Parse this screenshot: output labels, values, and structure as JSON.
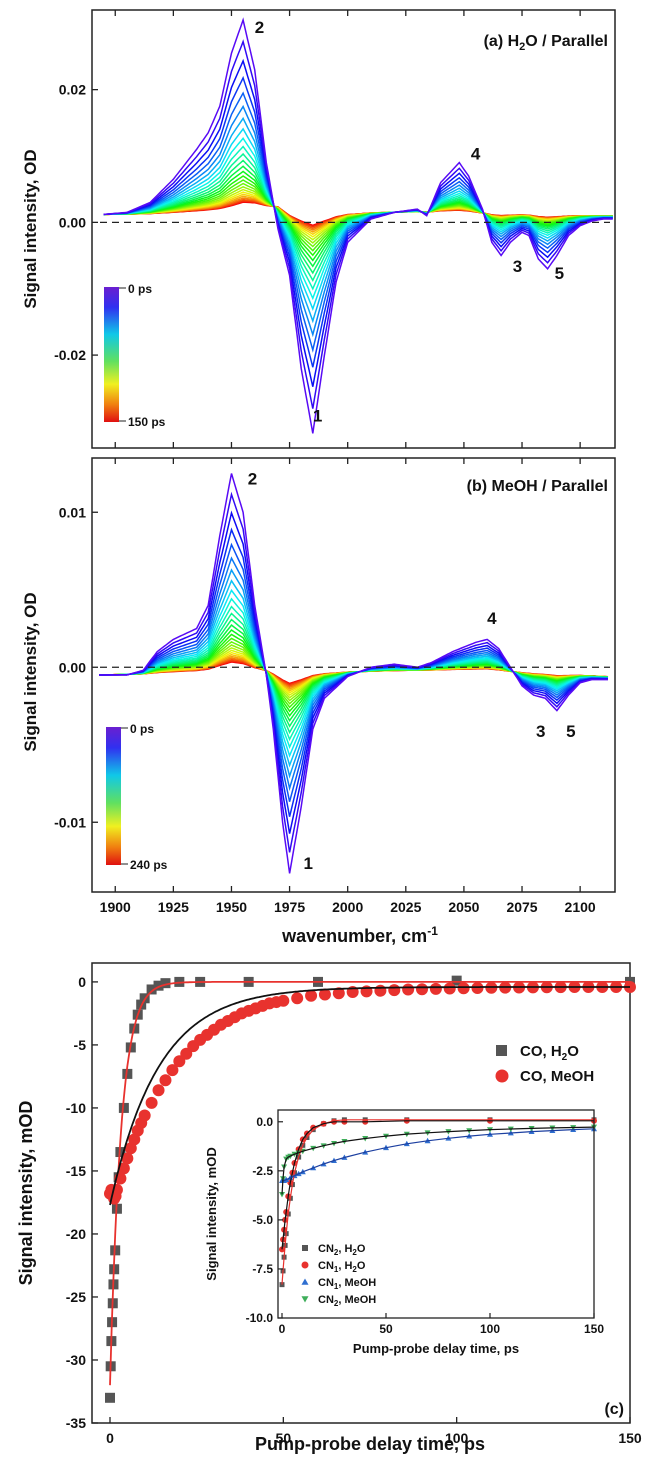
{
  "chart_data": [
    {
      "panel": "a",
      "type": "line",
      "title": "(a) H₂O / Parallel",
      "title_base": "(a) H",
      "title_sub": "2",
      "title_rest": "O / Parallel",
      "xlabel": "",
      "ylabel": "Signal intensity, OD",
      "xlim": [
        1890,
        2115
      ],
      "ylim": [
        -0.034,
        0.032
      ],
      "yticks": [
        0.02,
        0.0,
        -0.02
      ],
      "ytick_labels": [
        "0.02",
        "0.00",
        "-0.02"
      ],
      "colorbar": {
        "top_label": "0 ps",
        "bottom_label": "150 ps"
      },
      "peak_labels": [
        {
          "text": "2",
          "x": 1960,
          "y": 0.0285
        },
        {
          "text": "1",
          "x": 1985,
          "y": -0.03
        },
        {
          "text": "4",
          "x": 2053,
          "y": 0.0095
        },
        {
          "text": "3",
          "x": 2071,
          "y": -0.0075
        },
        {
          "text": "5",
          "x": 2089,
          "y": -0.0085
        }
      ],
      "reference_line": 0,
      "spectrum_0ps": {
        "x": [
          1895,
          1905,
          1915,
          1925,
          1935,
          1940,
          1945,
          1950,
          1955,
          1960,
          1965,
          1970,
          1975,
          1980,
          1985,
          1990,
          1995,
          2000,
          2010,
          2020,
          2030,
          2034,
          2040,
          2048,
          2052,
          2058,
          2062,
          2066,
          2070,
          2075,
          2078,
          2082,
          2086,
          2090,
          2095,
          2100,
          2105,
          2110,
          2114
        ],
        "y": [
          0.0012,
          0.0015,
          0.003,
          0.0065,
          0.011,
          0.0135,
          0.0175,
          0.0255,
          0.0305,
          0.023,
          0.009,
          -0.001,
          -0.008,
          -0.022,
          -0.0318,
          -0.02,
          -0.009,
          -0.003,
          0.0005,
          0.0015,
          0.002,
          0.001,
          0.006,
          0.009,
          0.007,
          0.002,
          -0.003,
          -0.005,
          -0.003,
          -0.0015,
          -0.002,
          -0.0055,
          -0.007,
          -0.005,
          -0.002,
          -0.0005,
          0.0002,
          0.0005,
          0.0005
        ]
      },
      "spectrum_final": {
        "x": [
          1895,
          1950,
          1970,
          1975,
          1985,
          2000,
          2030,
          2110,
          2114
        ],
        "y": [
          0.0012,
          0.0013,
          0.0025,
          0.0015,
          0.0012,
          0.0014,
          0.0016,
          0.001,
          0.001
        ]
      },
      "curve_count": 26
    },
    {
      "panel": "b",
      "type": "line",
      "title": "(b) MeOH / Parallel",
      "xlabel": "wavenumber, cm⁻¹",
      "xlabel_base": "wavenumber, cm",
      "xlabel_sup": "-1",
      "ylabel": "Signal intensity, OD",
      "xlim": [
        1890,
        2115
      ],
      "ylim": [
        -0.0145,
        0.0135
      ],
      "xticks": [
        1900,
        1925,
        1950,
        1975,
        2000,
        2025,
        2050,
        2075,
        2100
      ],
      "xtick_labels": [
        "1900",
        "1925",
        "1950",
        "1975",
        "2000",
        "2025",
        "2050",
        "2075",
        "2100"
      ],
      "yticks": [
        0.01,
        0.0,
        -0.01
      ],
      "ytick_labels": [
        "0.01",
        "0.00",
        "-0.01"
      ],
      "colorbar": {
        "top_label": "0 ps",
        "bottom_label": "240 ps"
      },
      "peak_labels": [
        {
          "text": "2",
          "x": 1957,
          "y": 0.0118
        },
        {
          "text": "1",
          "x": 1981,
          "y": -0.013
        },
        {
          "text": "4",
          "x": 2060,
          "y": 0.0028
        },
        {
          "text": "3",
          "x": 2081,
          "y": -0.0045
        },
        {
          "text": "5",
          "x": 2094,
          "y": -0.0045
        }
      ],
      "reference_line": 0,
      "spectrum_0ps": {
        "x": [
          1893,
          1905,
          1912,
          1918,
          1925,
          1935,
          1940,
          1945,
          1950,
          1955,
          1960,
          1965,
          1968,
          1972,
          1975,
          1980,
          1985,
          1990,
          2000,
          2010,
          2020,
          2030,
          2036,
          2045,
          2055,
          2060,
          2065,
          2070,
          2075,
          2080,
          2085,
          2090,
          2095,
          2100,
          2105,
          2112
        ],
        "y": [
          -0.0005,
          -0.0005,
          -0.0002,
          0.001,
          0.0018,
          0.0025,
          0.004,
          0.0085,
          0.0125,
          0.01,
          0.004,
          -0.0005,
          -0.004,
          -0.01,
          -0.0133,
          -0.009,
          -0.004,
          -0.002,
          -0.0006,
          0.0,
          0.0002,
          0.0,
          0.0003,
          0.001,
          0.0016,
          0.0018,
          0.0012,
          0.0,
          -0.0012,
          -0.0018,
          -0.002,
          -0.0028,
          -0.0018,
          -0.001,
          -0.0008,
          -0.0008
        ]
      },
      "spectrum_final": {
        "x": [
          1893,
          1950,
          1965,
          1975,
          2000,
          2030,
          2060,
          2112
        ],
        "y": [
          -0.0005,
          -0.0003,
          -0.0002,
          -0.0004,
          -0.0003,
          -0.0002,
          -0.0002,
          -0.0006
        ]
      },
      "curve_count": 28
    },
    {
      "panel": "c",
      "type": "scatter",
      "label": "(c)",
      "xlabel": "Pump-probe delay time, ps",
      "ylabel": "Signal intensity, mOD",
      "xlim": [
        -3,
        150
      ],
      "ylim": [
        -35,
        1.5
      ],
      "xticks": [
        0,
        50,
        100,
        150
      ],
      "yticks": [
        0,
        -5,
        -10,
        -15,
        -20,
        -25,
        -30,
        -35
      ],
      "legend_position": "right",
      "series": [
        {
          "name": "CO, H₂O",
          "name_base": "CO, H",
          "name_sub": "2",
          "name_rest": "O",
          "marker": "square",
          "color": "#555555",
          "fit_color": "#e8322e",
          "x": [
            0,
            0.2,
            0.4,
            0.6,
            0.8,
            1.0,
            1.2,
            1.5,
            2,
            2.5,
            3,
            4,
            5,
            6,
            7,
            8,
            9,
            10,
            12,
            14,
            16,
            20,
            26,
            40,
            60,
            100,
            150
          ],
          "y": [
            -33.0,
            -30.5,
            -28.5,
            -27.0,
            -25.5,
            -24.0,
            -22.8,
            -21.3,
            -18.0,
            -15.5,
            -13.5,
            -10.0,
            -7.3,
            -5.2,
            -3.7,
            -2.6,
            -1.8,
            -1.3,
            -0.6,
            -0.3,
            -0.1,
            0.0,
            0.0,
            0.0,
            0.0,
            0.1,
            0.0
          ],
          "fit": {
            "model": "exp",
            "A": -32.0,
            "tau": 3.2,
            "offset": 0.0
          }
        },
        {
          "name": "CO, MeOH",
          "marker": "circle",
          "color": "#e8322e",
          "fit_color": "#111111",
          "x": [
            0,
            0.4,
            0.8,
            1.2,
            1.6,
            2,
            3,
            4,
            5,
            6,
            7,
            8,
            9,
            10,
            12,
            14,
            16,
            18,
            20,
            22,
            24,
            26,
            28,
            30,
            32,
            34,
            36,
            38,
            40,
            42,
            44,
            46,
            48,
            50,
            54,
            58,
            62,
            66,
            70,
            74,
            78,
            82,
            86,
            90,
            94,
            98,
            102,
            106,
            110,
            114,
            118,
            122,
            126,
            130,
            134,
            138,
            142,
            146,
            150
          ],
          "y": [
            -16.8,
            -16.5,
            -16.8,
            -17.2,
            -17.0,
            -16.5,
            -15.6,
            -14.8,
            -14.0,
            -13.2,
            -12.5,
            -11.8,
            -11.2,
            -10.6,
            -9.6,
            -8.6,
            -7.8,
            -7.0,
            -6.3,
            -5.7,
            -5.1,
            -4.6,
            -4.2,
            -3.8,
            -3.4,
            -3.1,
            -2.8,
            -2.5,
            -2.3,
            -2.1,
            -1.9,
            -1.7,
            -1.6,
            -1.5,
            -1.3,
            -1.1,
            -1.0,
            -0.9,
            -0.8,
            -0.75,
            -0.7,
            -0.65,
            -0.6,
            -0.58,
            -0.55,
            -0.52,
            -0.5,
            -0.48,
            -0.46,
            -0.45,
            -0.44,
            -0.43,
            -0.42,
            -0.41,
            -0.4,
            -0.4,
            -0.4,
            -0.4,
            -0.4
          ],
          "fit": {
            "model": "exp",
            "A": -17.3,
            "tau": 14.0,
            "offset": -0.4
          }
        }
      ],
      "inset": {
        "xlabel": "Pump-probe delay time, ps",
        "ylabel": "Signal intensity, mOD",
        "xlim": [
          -3,
          150
        ],
        "ylim": [
          -10.0,
          0.6
        ],
        "xticks": [
          0,
          50,
          100,
          150
        ],
        "yticks": [
          0.0,
          -2.5,
          -5.0,
          -7.5,
          -10.0
        ],
        "ytick_labels": [
          "0.0",
          "-2.5",
          "-5.0",
          "-7.5",
          "-10.0"
        ],
        "series": [
          {
            "name": "CN₂, H₂O",
            "name_parts": [
              "CN",
              "2",
              ", H",
              "2",
              "O"
            ],
            "marker": "square",
            "color": "#555555",
            "x": [
              0,
              0.5,
              1,
              1.5,
              2,
              3,
              4,
              5,
              6,
              8,
              10,
              12,
              15,
              20,
              25,
              30,
              40,
              60,
              100,
              150
            ],
            "y": [
              -8.3,
              -7.6,
              -6.9,
              -6.3,
              -5.7,
              -4.7,
              -3.9,
              -3.2,
              -2.6,
              -1.8,
              -1.2,
              -0.8,
              -0.4,
              -0.1,
              0.05,
              0.1,
              0.1,
              0.1,
              0.1,
              0.1
            ]
          },
          {
            "name": "CN₁, H₂O",
            "name_parts": [
              "CN",
              "1",
              ", H",
              "2",
              "O"
            ],
            "marker": "circle",
            "color": "#e8322e",
            "x": [
              0,
              0.5,
              1,
              1.5,
              2,
              3,
              4,
              5,
              6,
              8,
              10,
              12,
              15,
              20,
              25,
              30,
              40,
              60,
              100,
              150
            ],
            "y": [
              -6.5,
              -6.0,
              -5.5,
              -5.0,
              -4.6,
              -3.8,
              -3.1,
              -2.6,
              -2.1,
              -1.4,
              -0.9,
              -0.6,
              -0.3,
              -0.1,
              0.0,
              0.0,
              0.0,
              0.05,
              0.05,
              0.05
            ]
          },
          {
            "name": "CN₁, MeOH",
            "name_parts": [
              "CN",
              "1",
              ", MeOH",
              "",
              ""
            ],
            "marker": "triangle-up",
            "color": "#2f6fd0",
            "x": [
              0,
              1,
              2,
              4,
              6,
              8,
              10,
              15,
              20,
              25,
              30,
              40,
              50,
              60,
              70,
              80,
              90,
              100,
              110,
              120,
              130,
              140,
              150
            ],
            "y": [
              -3.0,
              -3.0,
              -2.95,
              -2.85,
              -2.75,
              -2.65,
              -2.55,
              -2.35,
              -2.15,
              -1.98,
              -1.82,
              -1.55,
              -1.32,
              -1.12,
              -0.97,
              -0.84,
              -0.73,
              -0.64,
              -0.57,
              -0.5,
              -0.45,
              -0.4,
              -0.36
            ]
          },
          {
            "name": "CN₂, MeOH",
            "name_parts": [
              "CN",
              "2",
              ", MeOH",
              "",
              ""
            ],
            "marker": "triangle-down",
            "color": "#3fae5a",
            "x": [
              0,
              0.5,
              1,
              2,
              3,
              4,
              6,
              8,
              10,
              15,
              20,
              25,
              30,
              40,
              50,
              60,
              70,
              80,
              90,
              100,
              110,
              120,
              130,
              140,
              150
            ],
            "y": [
              -3.7,
              -2.9,
              -2.3,
              -1.9,
              -1.8,
              -1.75,
              -1.65,
              -1.58,
              -1.5,
              -1.35,
              -1.22,
              -1.1,
              -1.0,
              -0.85,
              -0.73,
              -0.63,
              -0.56,
              -0.5,
              -0.45,
              -0.4,
              -0.37,
              -0.34,
              -0.31,
              -0.29,
              -0.27
            ]
          }
        ]
      }
    }
  ]
}
